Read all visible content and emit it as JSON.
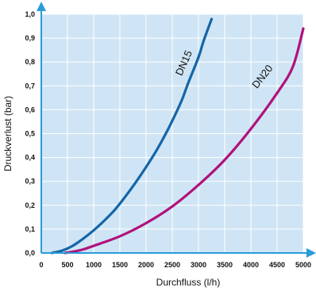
{
  "chart_data": {
    "type": "line",
    "xlabel": "Durchfluss (l/h)",
    "ylabel": "Druckverlust (bar)",
    "xlim": [
      0,
      5000
    ],
    "ylim": [
      0,
      1.0
    ],
    "x_ticks": [
      "0",
      "500",
      "1000",
      "1500",
      "2000",
      "2500",
      "3000",
      "3500",
      "4000",
      "4500",
      "5000"
    ],
    "y_ticks": [
      "0,0",
      "0,1",
      "0,2",
      "0,3",
      "0,4",
      "0,5",
      "0,6",
      "0,7",
      "0,8",
      "0,9",
      "1,0"
    ],
    "grid": true,
    "background": "#cfe5f5",
    "grid_color": "#ffffff",
    "axis_color": "#2a9bd8",
    "series": [
      {
        "name": "DN15",
        "color": "#1565a8",
        "points": [
          [
            200,
            0.0
          ],
          [
            400,
            0.01
          ],
          [
            600,
            0.03
          ],
          [
            800,
            0.06
          ],
          [
            1000,
            0.095
          ],
          [
            1200,
            0.135
          ],
          [
            1400,
            0.18
          ],
          [
            1600,
            0.235
          ],
          [
            1800,
            0.295
          ],
          [
            2000,
            0.36
          ],
          [
            2200,
            0.43
          ],
          [
            2400,
            0.51
          ],
          [
            2600,
            0.6
          ],
          [
            2700,
            0.65
          ],
          [
            2800,
            0.71
          ],
          [
            3000,
            0.82
          ],
          [
            3100,
            0.89
          ],
          [
            3250,
            0.98
          ]
        ]
      },
      {
        "name": "DN20",
        "color": "#b0127b",
        "points": [
          [
            450,
            0.0
          ],
          [
            600,
            0.005
          ],
          [
            800,
            0.015
          ],
          [
            1000,
            0.03
          ],
          [
            1500,
            0.07
          ],
          [
            2000,
            0.125
          ],
          [
            2500,
            0.195
          ],
          [
            3000,
            0.285
          ],
          [
            3500,
            0.39
          ],
          [
            4000,
            0.52
          ],
          [
            4500,
            0.67
          ],
          [
            4800,
            0.78
          ],
          [
            5000,
            0.94
          ]
        ]
      }
    ]
  }
}
